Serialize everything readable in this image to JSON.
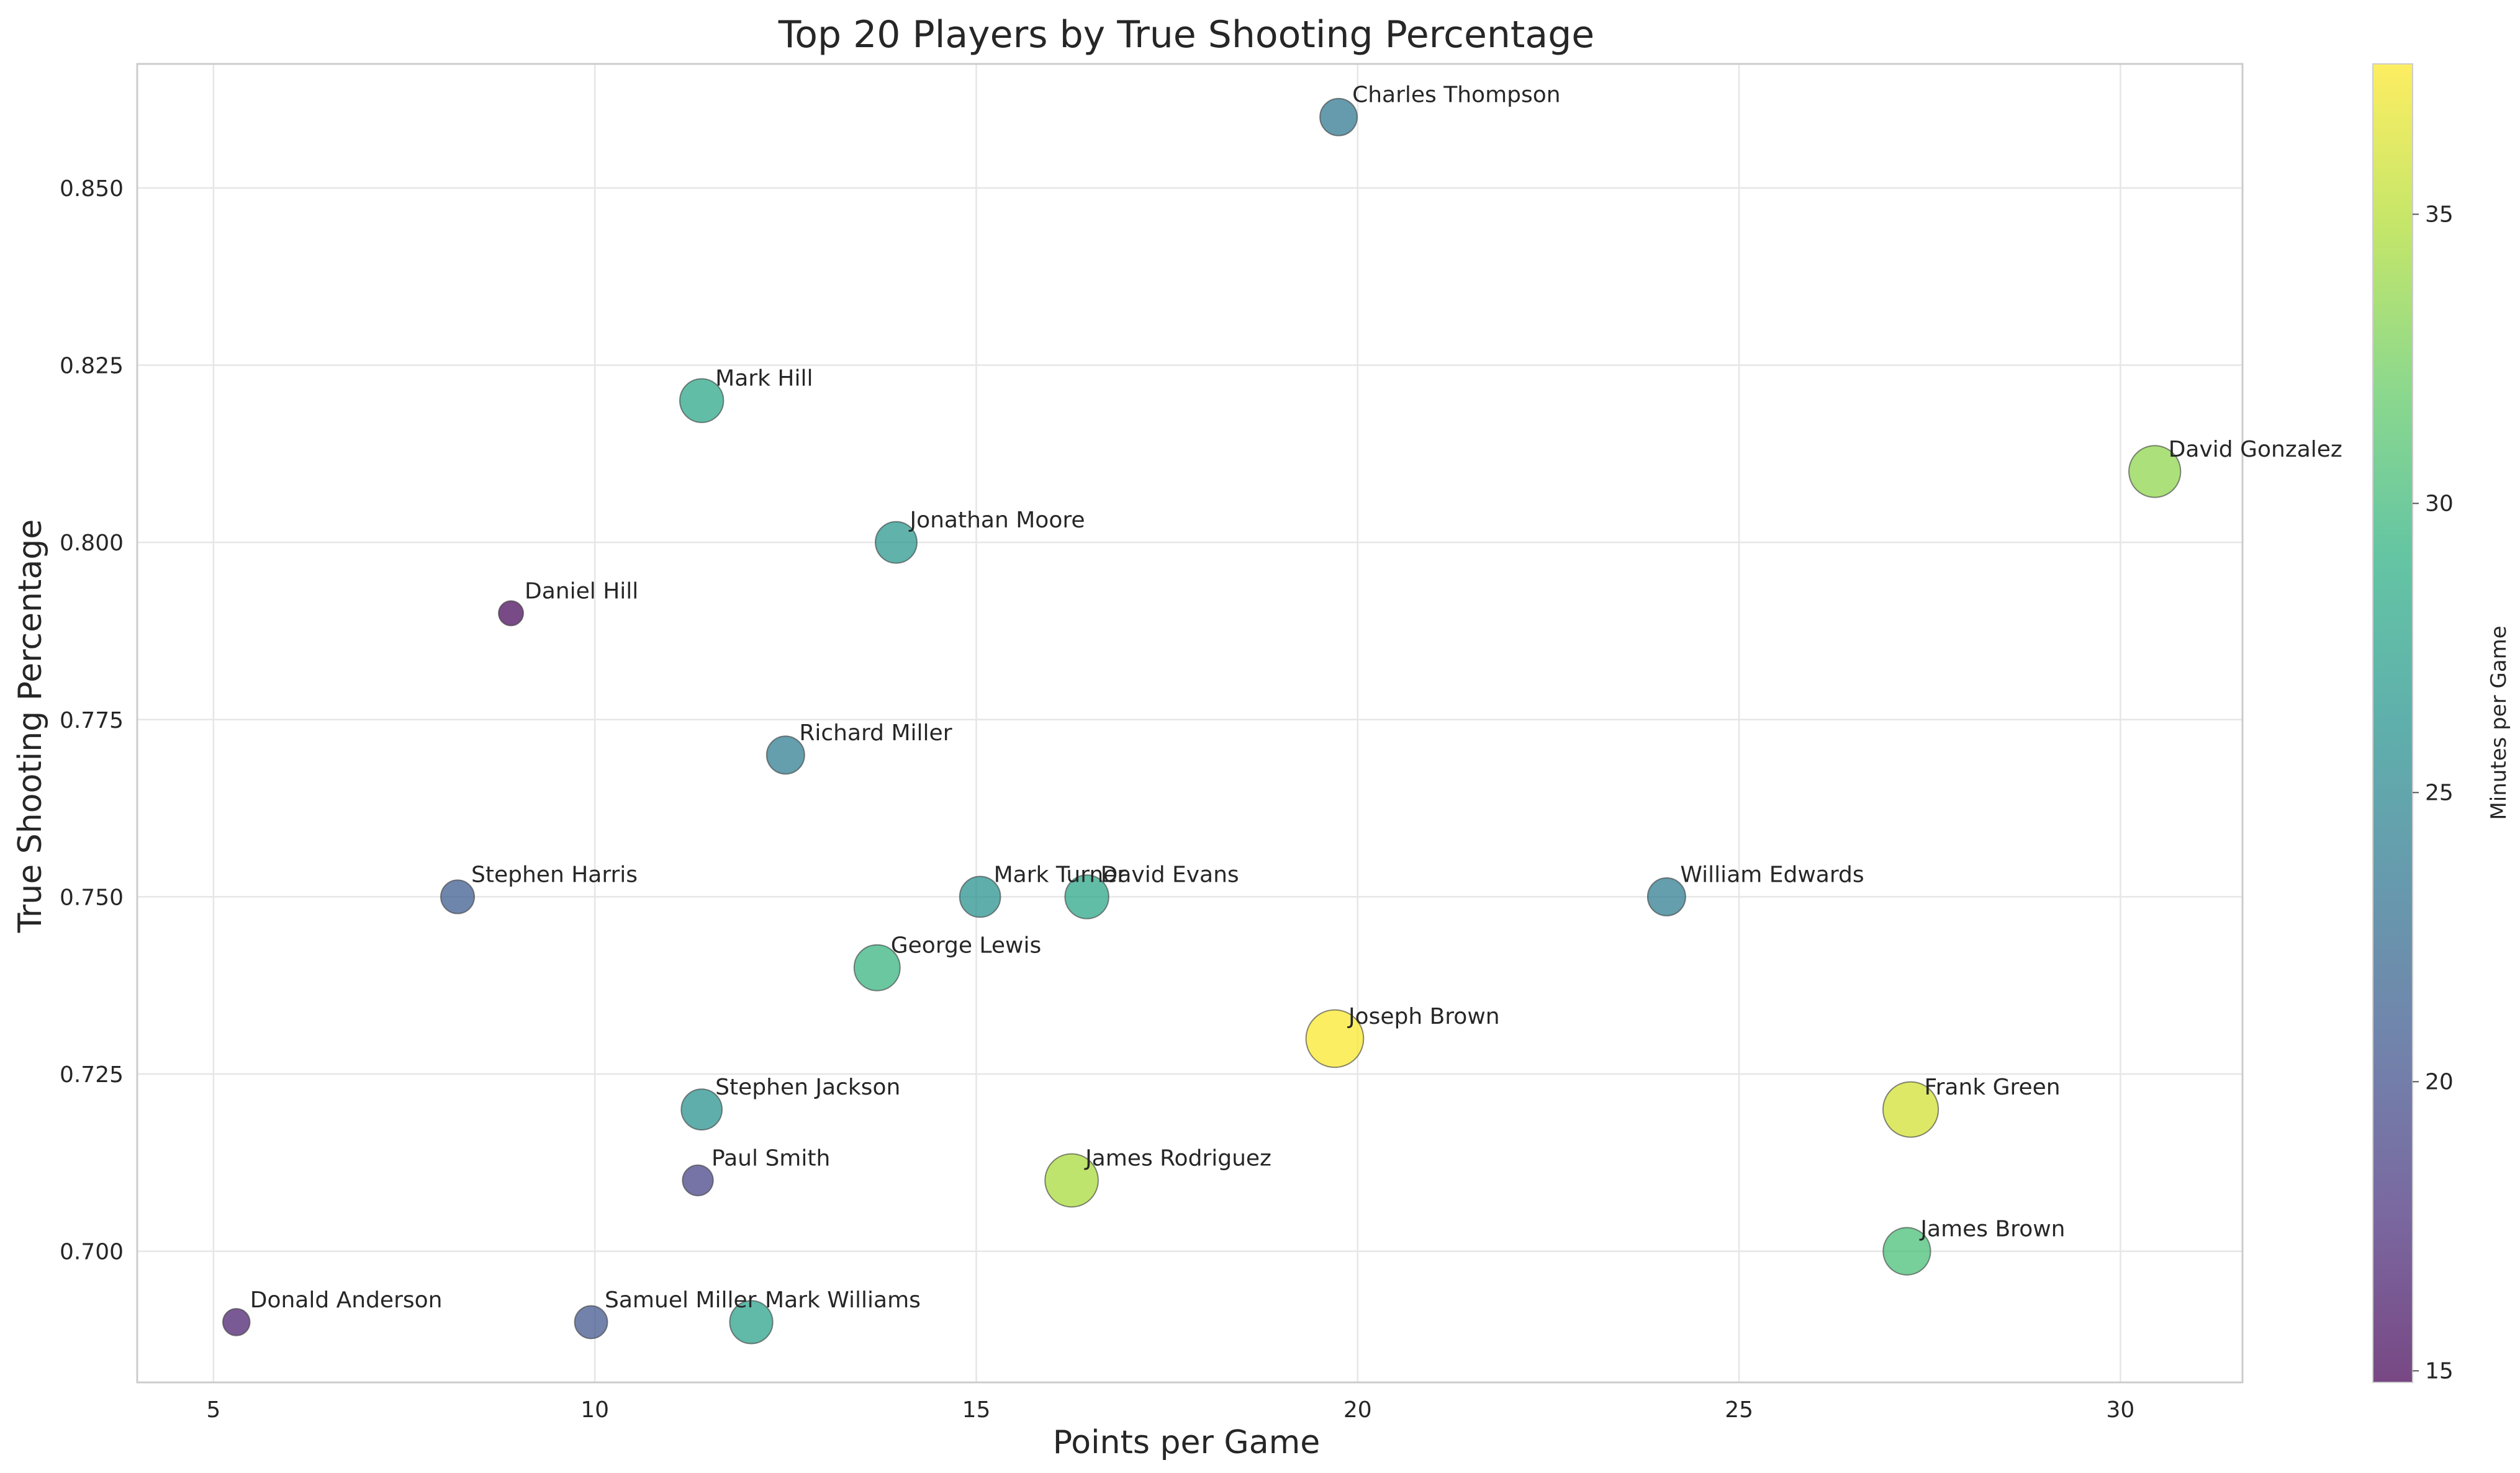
{
  "chart_data": {
    "type": "scatter",
    "title": "Top 20 Players by True Shooting Percentage",
    "xlabel": "Points per Game",
    "ylabel": "True Shooting Percentage",
    "xlim": [
      4.0,
      31.6
    ],
    "ylim": [
      0.6815,
      0.8675
    ],
    "xticks": [
      5,
      10,
      15,
      20,
      25,
      30
    ],
    "xtick_labels": [
      "5",
      "10",
      "15",
      "20",
      "25",
      "30"
    ],
    "yticks": [
      0.7,
      0.725,
      0.75,
      0.775,
      0.8,
      0.825,
      0.85
    ],
    "ytick_labels": [
      "0.700",
      "0.725",
      "0.750",
      "0.775",
      "0.800",
      "0.825",
      "0.850"
    ],
    "grid": true,
    "colorbar": {
      "label": "Minutes per Game",
      "colormap": "viridis",
      "min": 14.8,
      "max": 37.6,
      "ticks": [
        15,
        20,
        25,
        30,
        35
      ],
      "tick_labels": [
        "15",
        "20",
        "25",
        "30",
        "35"
      ]
    },
    "size_encoding": "Minutes per Game",
    "points": [
      {
        "name": "Charles Thompson",
        "x": 19.75,
        "y": 0.86,
        "minutes": 23.5
      },
      {
        "name": "Mark Hill",
        "x": 11.4,
        "y": 0.82,
        "minutes": 28.0
      },
      {
        "name": "David Gonzalez",
        "x": 30.45,
        "y": 0.81,
        "minutes": 33.5
      },
      {
        "name": "Jonathan Moore",
        "x": 13.95,
        "y": 0.8,
        "minutes": 26.5
      },
      {
        "name": "Daniel Hill",
        "x": 8.9,
        "y": 0.79,
        "minutes": 15.0
      },
      {
        "name": "Richard Miller",
        "x": 12.5,
        "y": 0.77,
        "minutes": 24.0
      },
      {
        "name": "Stephen Harris",
        "x": 8.2,
        "y": 0.75,
        "minutes": 21.0
      },
      {
        "name": "Mark Turner",
        "x": 15.05,
        "y": 0.75,
        "minutes": 26.0
      },
      {
        "name": "David Evans",
        "x": 16.45,
        "y": 0.75,
        "minutes": 28.0
      },
      {
        "name": "William Edwards",
        "x": 24.05,
        "y": 0.75,
        "minutes": 24.0
      },
      {
        "name": "George Lewis",
        "x": 13.7,
        "y": 0.74,
        "minutes": 29.5
      },
      {
        "name": "Joseph Brown",
        "x": 19.7,
        "y": 0.73,
        "minutes": 37.5
      },
      {
        "name": "Stephen Jackson",
        "x": 11.4,
        "y": 0.72,
        "minutes": 26.0
      },
      {
        "name": "Frank Green",
        "x": 27.25,
        "y": 0.72,
        "minutes": 36.0
      },
      {
        "name": "Paul Smith",
        "x": 11.35,
        "y": 0.71,
        "minutes": 19.0
      },
      {
        "name": "James Rodriguez",
        "x": 16.25,
        "y": 0.71,
        "minutes": 34.5
      },
      {
        "name": "James Brown",
        "x": 27.2,
        "y": 0.7,
        "minutes": 30.5
      },
      {
        "name": "Donald Anderson",
        "x": 5.3,
        "y": 0.69,
        "minutes": 16.5
      },
      {
        "name": "Samuel Miller",
        "x": 9.95,
        "y": 0.69,
        "minutes": 20.5
      },
      {
        "name": "Mark Williams",
        "x": 12.05,
        "y": 0.69,
        "minutes": 27.5
      }
    ]
  }
}
